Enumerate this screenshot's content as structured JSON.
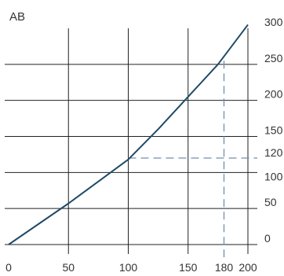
{
  "chart_data": {
    "type": "line",
    "title": "",
    "ylabel": "AB",
    "xlabel": "",
    "xlim": [
      0,
      200
    ],
    "ylim": [
      0,
      300
    ],
    "x_ticks": [
      0,
      50,
      100,
      150,
      180,
      200
    ],
    "y_ticks": [
      0,
      50,
      100,
      120,
      150,
      200,
      250,
      300
    ],
    "x_gridlines": [
      50,
      100,
      150,
      200
    ],
    "y_gridlines": [
      0,
      50,
      100,
      150,
      200,
      250
    ],
    "series": [
      {
        "x": [
          0,
          50,
          100,
          125,
          150,
          175,
          200
        ],
        "y": [
          0,
          57,
          118,
          160,
          205,
          250,
          305
        ],
        "color": "#1e4a66"
      }
    ],
    "reference_lines": [
      {
        "orientation": "vertical",
        "x": 180,
        "y_from": 0,
        "y_to": 255,
        "style": "dashed"
      },
      {
        "orientation": "horizontal",
        "y": 120,
        "x_from": 100,
        "x_to": 200,
        "style": "dashed"
      }
    ],
    "colors": {
      "grid": "#222222",
      "line": "#1e4a66",
      "reference": "#6e8fad"
    }
  }
}
